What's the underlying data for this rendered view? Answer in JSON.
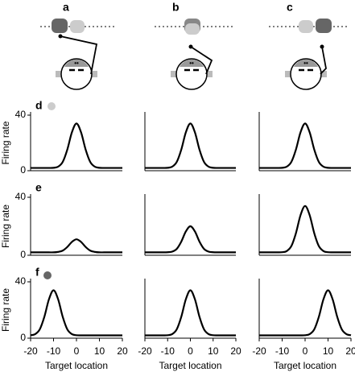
{
  "column_labels": [
    "a",
    "b",
    "c"
  ],
  "chart_data": [
    {
      "type": "line",
      "label": "d",
      "ylabel": "Firing rate",
      "x": [
        -20,
        -18,
        -16,
        -14,
        -12,
        -10,
        -8,
        -6,
        -4,
        -2,
        0,
        2,
        4,
        6,
        8,
        10,
        12,
        14,
        16,
        18,
        20
      ],
      "values": [
        2,
        2,
        2,
        2,
        2,
        2.1,
        2.9,
        6.3,
        15.2,
        27.6,
        34,
        27.6,
        15.2,
        6.3,
        2.9,
        2.1,
        2,
        2,
        2,
        2,
        2
      ],
      "xlim": [
        -20,
        20
      ],
      "ylim": [
        0,
        40
      ],
      "yticks": [
        0,
        40
      ],
      "color": "#000000"
    },
    {
      "type": "line",
      "x": [
        -20,
        -18,
        -16,
        -14,
        -12,
        -10,
        -8,
        -6,
        -4,
        -2,
        0,
        2,
        4,
        6,
        8,
        10,
        12,
        14,
        16,
        18,
        20
      ],
      "values": [
        2,
        2,
        2,
        2,
        2,
        2.1,
        2.9,
        6.3,
        15.2,
        27.6,
        34,
        27.6,
        15.2,
        6.3,
        2.9,
        2.1,
        2,
        2,
        2,
        2,
        2
      ],
      "xlim": [
        -20,
        20
      ],
      "ylim": [
        0,
        40
      ],
      "color": "#000000"
    },
    {
      "type": "line",
      "x": [
        -20,
        -18,
        -16,
        -14,
        -12,
        -10,
        -8,
        -6,
        -4,
        -2,
        0,
        2,
        4,
        6,
        8,
        10,
        12,
        14,
        16,
        18,
        20
      ],
      "values": [
        2,
        2,
        2,
        2,
        2,
        2.1,
        2.9,
        6.3,
        15.2,
        27.6,
        34,
        27.6,
        15.2,
        6.3,
        2.9,
        2.1,
        2,
        2,
        2,
        2,
        2
      ],
      "xlim": [
        -20,
        20
      ],
      "ylim": [
        0,
        40
      ],
      "color": "#000000"
    },
    {
      "type": "line",
      "label": "e",
      "ylabel": "Firing rate",
      "x": [
        -20,
        -18,
        -16,
        -14,
        -12,
        -10,
        -8,
        -6,
        -4,
        -2,
        0,
        2,
        4,
        6,
        8,
        10,
        12,
        14,
        16,
        18,
        20
      ],
      "values": [
        2,
        2,
        2,
        2,
        2,
        2,
        2.3,
        3.2,
        5.7,
        9.2,
        11,
        9.2,
        5.7,
        3.2,
        2.3,
        2,
        2,
        2,
        2,
        2,
        2
      ],
      "xlim": [
        -20,
        20
      ],
      "ylim": [
        0,
        40
      ],
      "yticks": [
        0,
        40
      ],
      "color": "#000000"
    },
    {
      "type": "line",
      "x": [
        -20,
        -18,
        -16,
        -14,
        -12,
        -10,
        -8,
        -6,
        -4,
        -2,
        0,
        2,
        4,
        6,
        8,
        10,
        12,
        14,
        16,
        18,
        20
      ],
      "values": [
        2,
        2,
        2,
        2,
        2,
        2.1,
        2.5,
        4.4,
        9.4,
        16.4,
        20,
        16.4,
        9.4,
        4.4,
        2.5,
        2.1,
        2,
        2,
        2,
        2,
        2
      ],
      "xlim": [
        -20,
        20
      ],
      "ylim": [
        0,
        40
      ],
      "color": "#000000"
    },
    {
      "type": "line",
      "x": [
        -20,
        -18,
        -16,
        -14,
        -12,
        -10,
        -8,
        -6,
        -4,
        -2,
        0,
        2,
        4,
        6,
        8,
        10,
        12,
        14,
        16,
        18,
        20
      ],
      "values": [
        2,
        2,
        2,
        2,
        2,
        2.1,
        2.9,
        6.3,
        15.2,
        27.6,
        34,
        27.6,
        15.2,
        6.3,
        2.9,
        2.1,
        2,
        2,
        2,
        2,
        2
      ],
      "xlim": [
        -20,
        20
      ],
      "ylim": [
        0,
        40
      ],
      "color": "#000000"
    },
    {
      "type": "line",
      "label": "f",
      "ylabel": "Firing rate",
      "xlabel": "Target location",
      "x": [
        -20,
        -18,
        -16,
        -14,
        -12,
        -10,
        -8,
        -6,
        -4,
        -2,
        0,
        2,
        4,
        6,
        8,
        10,
        12,
        14,
        16,
        18,
        20
      ],
      "values": [
        2.1,
        2.9,
        6.3,
        15.2,
        27.6,
        34,
        27.6,
        15.2,
        6.3,
        2.9,
        2.1,
        2,
        2,
        2,
        2,
        2,
        2,
        2,
        2,
        2,
        2
      ],
      "xlim": [
        -20,
        20
      ],
      "ylim": [
        0,
        40
      ],
      "yticks": [
        0,
        40
      ],
      "xticks": [
        -20,
        -10,
        0,
        10,
        20
      ],
      "color": "#000000"
    },
    {
      "type": "line",
      "xlabel": "Target location",
      "x": [
        -20,
        -18,
        -16,
        -14,
        -12,
        -10,
        -8,
        -6,
        -4,
        -2,
        0,
        2,
        4,
        6,
        8,
        10,
        12,
        14,
        16,
        18,
        20
      ],
      "values": [
        2,
        2,
        2,
        2,
        2,
        2.1,
        2.9,
        6.3,
        15.2,
        27.6,
        34,
        27.6,
        15.2,
        6.3,
        2.9,
        2.1,
        2,
        2,
        2,
        2,
        2
      ],
      "xlim": [
        -20,
        20
      ],
      "ylim": [
        0,
        40
      ],
      "xticks": [
        -20,
        -10,
        0,
        10,
        20
      ],
      "color": "#000000"
    },
    {
      "type": "line",
      "xlabel": "Target location",
      "x": [
        -20,
        -18,
        -16,
        -14,
        -12,
        -10,
        -8,
        -6,
        -4,
        -2,
        0,
        2,
        4,
        6,
        8,
        10,
        12,
        14,
        16,
        18,
        20
      ],
      "values": [
        2,
        2,
        2,
        2,
        2,
        2,
        2,
        2,
        2,
        2,
        2.1,
        2.9,
        6.3,
        15.2,
        27.6,
        34,
        27.6,
        15.2,
        6.3,
        2.9,
        2.1
      ],
      "xlim": [
        -20,
        20
      ],
      "ylim": [
        0,
        40
      ],
      "xticks": [
        -20,
        -10,
        0,
        10,
        20
      ],
      "color": "#000000"
    }
  ]
}
